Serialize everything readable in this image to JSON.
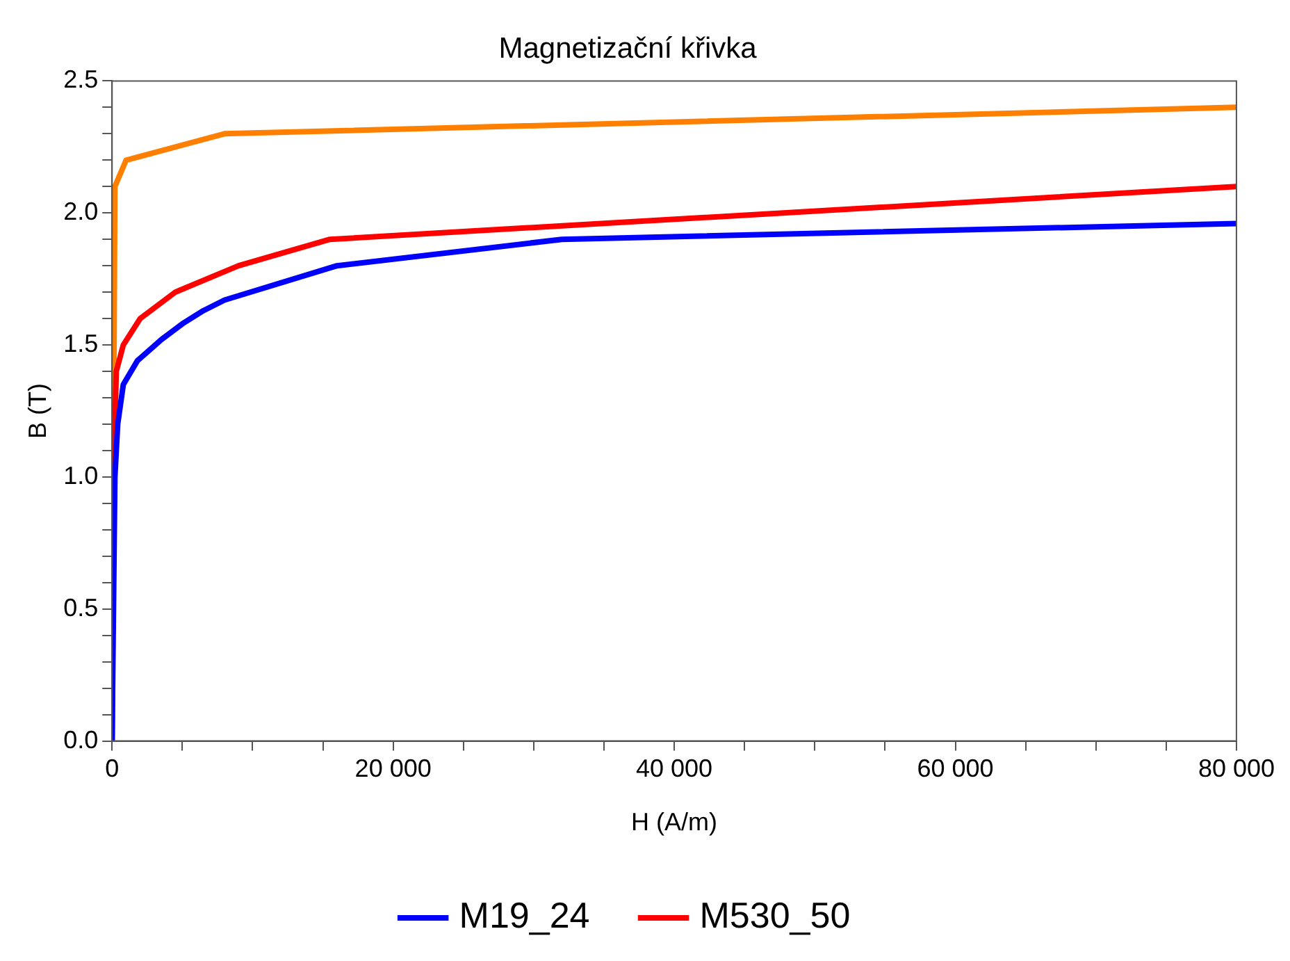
{
  "chart_data": {
    "type": "line",
    "title": "Magnetizační křivka",
    "xlabel": "H (A/m)",
    "ylabel": "B (T)",
    "xlim": [
      0,
      80000
    ],
    "ylim": [
      0,
      2.5
    ],
    "xticks": [
      0,
      {
        "value": 5000,
        "label": null
      },
      {
        "value": 10000,
        "label": null
      },
      {
        "value": 15000,
        "label": null
      },
      {
        "value": 20000,
        "label": "20 000"
      },
      {
        "value": 25000,
        "label": null
      },
      {
        "value": 30000,
        "label": null
      },
      {
        "value": 35000,
        "label": null
      },
      {
        "value": 40000,
        "label": "40 000"
      },
      {
        "value": 45000,
        "label": null
      },
      {
        "value": 50000,
        "label": null
      },
      {
        "value": 55000,
        "label": null
      },
      {
        "value": 60000,
        "label": "60 000"
      },
      {
        "value": 65000,
        "label": null
      },
      {
        "value": 70000,
        "label": null
      },
      {
        "value": 75000,
        "label": null
      },
      {
        "value": 80000,
        "label": "80 000"
      }
    ],
    "yticks": [
      {
        "value": 0,
        "label": "0.0"
      },
      {
        "value": 0.1,
        "label": null
      },
      {
        "value": 0.2,
        "label": null
      },
      {
        "value": 0.3,
        "label": null
      },
      {
        "value": 0.4,
        "label": null
      },
      {
        "value": 0.5,
        "label": "0.5"
      },
      {
        "value": 0.6,
        "label": null
      },
      {
        "value": 0.7,
        "label": null
      },
      {
        "value": 0.8,
        "label": null
      },
      {
        "value": 0.9,
        "label": null
      },
      {
        "value": 1,
        "label": "1.0"
      },
      {
        "value": 1.1,
        "label": null
      },
      {
        "value": 1.2,
        "label": null
      },
      {
        "value": 1.3,
        "label": null
      },
      {
        "value": 1.4,
        "label": null
      },
      {
        "value": 1.5,
        "label": "1.5"
      },
      {
        "value": 1.6,
        "label": null
      },
      {
        "value": 1.7,
        "label": null
      },
      {
        "value": 1.8,
        "label": null
      },
      {
        "value": 1.9,
        "label": null
      },
      {
        "value": 2,
        "label": "2.0"
      },
      {
        "value": 2.1,
        "label": null
      },
      {
        "value": 2.2,
        "label": null
      },
      {
        "value": 2.3,
        "label": null
      },
      {
        "value": 2.4,
        "label": null
      },
      {
        "value": 2.5,
        "label": "2.5"
      }
    ],
    "grid": false,
    "legend": "bottom",
    "marker": "none",
    "line_style": "solid",
    "series": [
      {
        "name": "M19_24",
        "color": "#0000ff",
        "x": [
          0,
          200,
          400,
          800,
          1800,
          3500,
          5000,
          6500,
          8000,
          16000,
          32000,
          80000
        ],
        "values": [
          0,
          1.0,
          1.2,
          1.35,
          1.44,
          1.52,
          1.58,
          1.63,
          1.67,
          1.8,
          1.9,
          1.96
        ]
      },
      {
        "name": "M530_50",
        "color": "#ff0000",
        "x": [
          0,
          100,
          300,
          800,
          2000,
          4500,
          9000,
          15500,
          80000
        ],
        "values": [
          0,
          1.0,
          1.4,
          1.5,
          1.6,
          1.7,
          1.8,
          1.9,
          2.1
        ]
      },
      {
        "color": "#ff8000",
        "x": [
          0,
          200,
          1000,
          8000,
          80000
        ],
        "values": [
          0,
          2.1,
          2.2,
          2.3,
          2.4
        ]
      }
    ]
  }
}
